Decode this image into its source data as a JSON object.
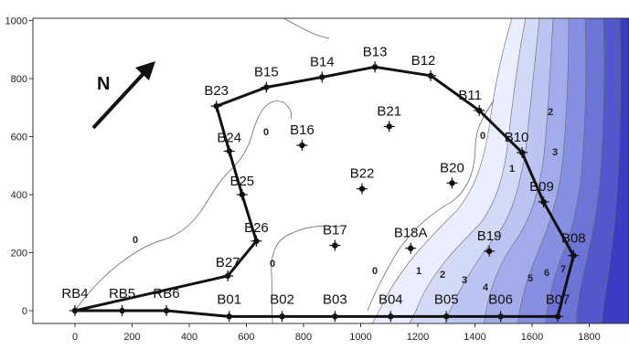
{
  "chart_data": {
    "type": "scatter",
    "title": "",
    "xlabel": "",
    "ylabel": "",
    "xlim": [
      -100,
      1880
    ],
    "ylim": [
      -30,
      1000
    ],
    "x_ticks": [
      0,
      200,
      400,
      600,
      800,
      1000,
      1200,
      1400,
      1600,
      1800
    ],
    "y_ticks": [
      0,
      200,
      400,
      600,
      800,
      1000
    ],
    "north_label": "N",
    "boreholes": [
      {
        "name": "RB4",
        "x": 0,
        "y": 0
      },
      {
        "name": "RB5",
        "x": 165,
        "y": 0
      },
      {
        "name": "RB6",
        "x": 320,
        "y": 0
      },
      {
        "name": "B01",
        "x": 540,
        "y": -20
      },
      {
        "name": "B02",
        "x": 725,
        "y": -20
      },
      {
        "name": "B03",
        "x": 910,
        "y": -20
      },
      {
        "name": "B04",
        "x": 1105,
        "y": -20
      },
      {
        "name": "B05",
        "x": 1300,
        "y": -20
      },
      {
        "name": "B06",
        "x": 1490,
        "y": -20
      },
      {
        "name": "B07",
        "x": 1690,
        "y": -20
      },
      {
        "name": "B08",
        "x": 1745,
        "y": 190
      },
      {
        "name": "B09",
        "x": 1640,
        "y": 375
      },
      {
        "name": "B10",
        "x": 1565,
        "y": 545
      },
      {
        "name": "B11",
        "x": 1415,
        "y": 690
      },
      {
        "name": "B12",
        "x": 1245,
        "y": 810
      },
      {
        "name": "B13",
        "x": 1050,
        "y": 840
      },
      {
        "name": "B14",
        "x": 865,
        "y": 805
      },
      {
        "name": "B15",
        "x": 670,
        "y": 770
      },
      {
        "name": "B23",
        "x": 495,
        "y": 705
      },
      {
        "name": "B24",
        "x": 540,
        "y": 550
      },
      {
        "name": "B25",
        "x": 585,
        "y": 400
      },
      {
        "name": "B26",
        "x": 635,
        "y": 240
      },
      {
        "name": "B27",
        "x": 535,
        "y": 120
      },
      {
        "name": "B16",
        "x": 795,
        "y": 570
      },
      {
        "name": "B21",
        "x": 1100,
        "y": 635
      },
      {
        "name": "B22",
        "x": 1005,
        "y": 420
      },
      {
        "name": "B20",
        "x": 1320,
        "y": 440
      },
      {
        "name": "B17",
        "x": 910,
        "y": 225
      },
      {
        "name": "B18A",
        "x": 1175,
        "y": 215
      },
      {
        "name": "B19",
        "x": 1450,
        "y": 205
      }
    ],
    "boundary_order": [
      "RB4",
      "RB5",
      "RB6",
      "B01",
      "B02",
      "B03",
      "B04",
      "B05",
      "B06",
      "B07",
      "B08",
      "B09",
      "B10",
      "B11",
      "B12",
      "B13",
      "B14",
      "B15",
      "B23",
      "B24",
      "B25",
      "B26",
      "B27",
      "RB4"
    ],
    "contour_labels": [
      "0",
      "0",
      "0",
      "0",
      "0",
      "1",
      "2",
      "3",
      "4",
      "5",
      "6",
      "7",
      "1",
      "2",
      "3"
    ],
    "fill_colors": [
      "#ffffff",
      "#eaeeff",
      "#d3daf8",
      "#bcc4f2",
      "#a3acea",
      "#8690e0",
      "#6c74d6",
      "#5257cc",
      "#3a3dc2"
    ]
  }
}
